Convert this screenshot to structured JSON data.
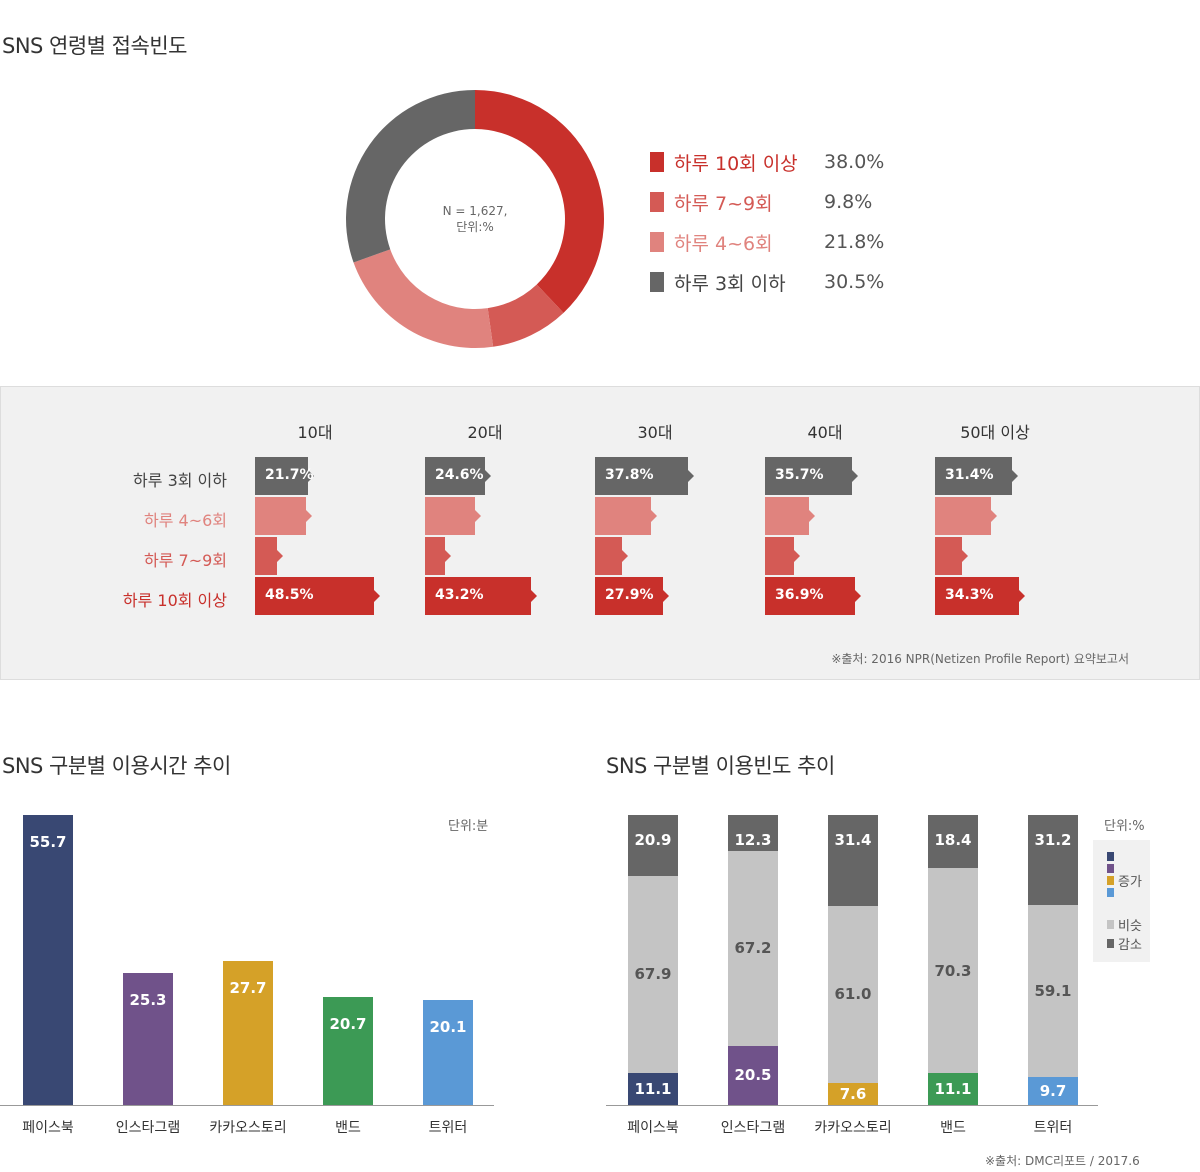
{
  "titles": {
    "donut": "SNS 연령별 접속빈도",
    "usage_time": "SNS 구분별 이용시간 추이",
    "usage_freq": "SNS 구분별 이용빈도 추이"
  },
  "colors": {
    "c10plus": "#c8302b",
    "c7to9": "#d45a55",
    "c4to6": "#e0837e",
    "c3under": "#666666"
  },
  "chart_data": [
    {
      "type": "pie",
      "title": "SNS 연령별 접속빈도",
      "center_text": [
        "N = 1,627,",
        "단위:%"
      ],
      "slices": [
        {
          "label": "하루 10회 이상",
          "value": 38.0,
          "display": "38.0%"
        },
        {
          "label": "하루 7~9회",
          "value": 9.8,
          "display": "9.8%"
        },
        {
          "label": "하루 4~6회",
          "value": 21.8,
          "display": "21.8%"
        },
        {
          "label": "하루 3회 이하",
          "value": 30.5,
          "display": "30.5%"
        }
      ]
    },
    {
      "type": "bar",
      "categories": [
        "10대",
        "20대",
        "30대",
        "40대",
        "50대 이상"
      ],
      "row_labels": [
        "하루 3회 이하",
        "하루 4~6회",
        "하루 7~9회",
        "하루 10회 이상"
      ],
      "series": [
        {
          "name": "하루 3회 이하",
          "values": [
            21.7,
            24.6,
            37.8,
            35.7,
            31.4
          ],
          "labels": [
            "21.7%",
            "24.6%",
            "37.8%",
            "35.7%",
            "31.4%"
          ]
        },
        {
          "name": "하루 4~6회",
          "values": [
            21,
            20.5,
            23,
            18,
            23
          ]
        },
        {
          "name": "하루 7~9회",
          "values": [
            9,
            8,
            11,
            12,
            11
          ]
        },
        {
          "name": "하루 10회 이상",
          "values": [
            48.5,
            43.2,
            27.9,
            36.9,
            34.3
          ],
          "labels": [
            "48.5%",
            "43.2%",
            "27.9%",
            "36.9%",
            "34.3%"
          ]
        }
      ],
      "source": "※출처: 2016 NPR(Netizen Profile Report) 요약보고서"
    },
    {
      "type": "bar",
      "title": "SNS 구분별 이용시간 추이",
      "unit": "단위:분",
      "categories": [
        "페이스북",
        "인스타그램",
        "카카오스토리",
        "밴드",
        "트위터"
      ],
      "values": [
        55.7,
        25.3,
        27.7,
        20.7,
        20.1
      ],
      "colors": [
        "#394873",
        "#70528a",
        "#d5a128",
        "#3c9a55",
        "#5a99d6"
      ]
    },
    {
      "type": "bar",
      "title": "SNS 구분별 이용빈도 추이",
      "unit": "단위:%",
      "stacked": true,
      "categories": [
        "페이스북",
        "인스타그램",
        "카카오스토리",
        "밴드",
        "트위터"
      ],
      "series": [
        {
          "name": "증가",
          "values": [
            11.1,
            20.5,
            7.6,
            11.1,
            9.7
          ],
          "colors": [
            "#394873",
            "#70528a",
            "#d5a128",
            "#3c9a55",
            "#5a99d6"
          ]
        },
        {
          "name": "비슷",
          "values": [
            67.9,
            67.2,
            61.0,
            70.3,
            59.1
          ]
        },
        {
          "name": "감소",
          "values": [
            20.9,
            12.3,
            31.4,
            18.4,
            31.2
          ]
        }
      ],
      "legend": [
        "증가",
        "비슷",
        "감소"
      ],
      "source": "※출처: DMC리포트 / 2017.6"
    }
  ]
}
